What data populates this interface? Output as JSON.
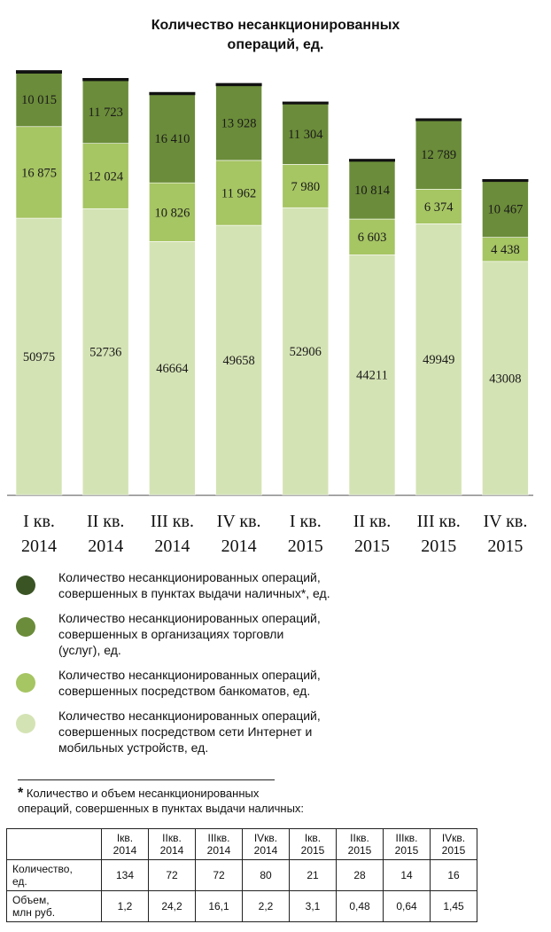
{
  "chart_data": {
    "type": "bar",
    "stacked": true,
    "title": "Количество несанкционированных операций, ед.",
    "title_lines": [
      "Количество несанкционированных",
      "операций, ед."
    ],
    "categories": [
      [
        "I кв.",
        "2014"
      ],
      [
        "II кв.",
        "2014"
      ],
      [
        "III кв.",
        "2014"
      ],
      [
        "IV кв.",
        "2014"
      ],
      [
        "I кв.",
        "2015"
      ],
      [
        "II кв.",
        "2015"
      ],
      [
        "III кв.",
        "2015"
      ],
      [
        "IV кв.",
        "2015"
      ]
    ],
    "series": [
      {
        "name": "Количество несанкционированных операций, совершенных посредством сети Интернет и мобильных устройств, ед.",
        "values": [
          50975,
          52736,
          46664,
          49658,
          52906,
          44211,
          49949,
          43008
        ],
        "labels": [
          "50975",
          "52736",
          "46664",
          "49658",
          "52906",
          "44211",
          "49949",
          "43008"
        ],
        "color": "#d4e3b4"
      },
      {
        "name": "Количество несанкционированных операций, совершенных посредством банкоматов, ед.",
        "values": [
          16875,
          12024,
          10826,
          11962,
          7980,
          6603,
          6374,
          4438
        ],
        "labels": [
          "16 875",
          "12 024",
          "10 826",
          "11 962",
          "7 980",
          "6 603",
          "6 374",
          "4 438"
        ],
        "color": "#a6c563"
      },
      {
        "name": "Количество несанкционированных операций, совершенных в организациях торговли (услуг), ед.",
        "values": [
          10015,
          11723,
          16410,
          13928,
          11304,
          10814,
          12789,
          10467
        ],
        "labels": [
          "10 015",
          "11 723",
          "16 410",
          "13 928",
          "11 304",
          "10 814",
          "12 789",
          "10 467"
        ],
        "color": "#6b8c3a"
      },
      {
        "name": "Количество несанкционированных операций, совершенных в пунктах выдачи наличных*, ед.",
        "values": [
          134,
          72,
          72,
          80,
          21,
          28,
          14,
          16
        ],
        "color": "#3a5424"
      }
    ],
    "ylim": [
      0,
      80000
    ],
    "grid": false,
    "legend_position": "bottom"
  },
  "legend": {
    "items": [
      {
        "text": "Количество несанкционированных операций,\nсовершенных в пунктах выдачи наличных*, ед.",
        "color": "#3a5424"
      },
      {
        "text": "Количество несанкционированных операций,\nсовершенных в организациях торговли\n(услуг), ед.",
        "color": "#6b8c3a"
      },
      {
        "text": "Количество несанкционированных операций,\nсовершенных посредством банкоматов, ед.",
        "color": "#a6c563"
      },
      {
        "text": "Количество несанкционированных операций,\nсовершенных посредством сети Интернет и\nмобильных устройств, ед.",
        "color": "#d4e3b4"
      }
    ]
  },
  "footnote": {
    "star": "*",
    "text": "Количество и объем несанкционированных\nопераций, совершенных в пунктах выдачи наличных:"
  },
  "footnote_table": {
    "headers": [
      [
        "Iкв.",
        "2014"
      ],
      [
        "IIкв.",
        "2014"
      ],
      [
        "IIIкв.",
        "2014"
      ],
      [
        "IVкв.",
        "2014"
      ],
      [
        "Iкв.",
        "2015"
      ],
      [
        "IIкв.",
        "2015"
      ],
      [
        "IIIкв.",
        "2015"
      ],
      [
        "IVкв.",
        "2015"
      ]
    ],
    "rows": [
      {
        "label": [
          "Количество,",
          "ед."
        ],
        "values": [
          "134",
          "72",
          "72",
          "80",
          "21",
          "28",
          "14",
          "16"
        ]
      },
      {
        "label": [
          "Объем,",
          "млн руб."
        ],
        "values": [
          "1,2",
          "24,2",
          "16,1",
          "2,2",
          "3,1",
          "0,48",
          "0,64",
          "1,45"
        ]
      }
    ]
  }
}
